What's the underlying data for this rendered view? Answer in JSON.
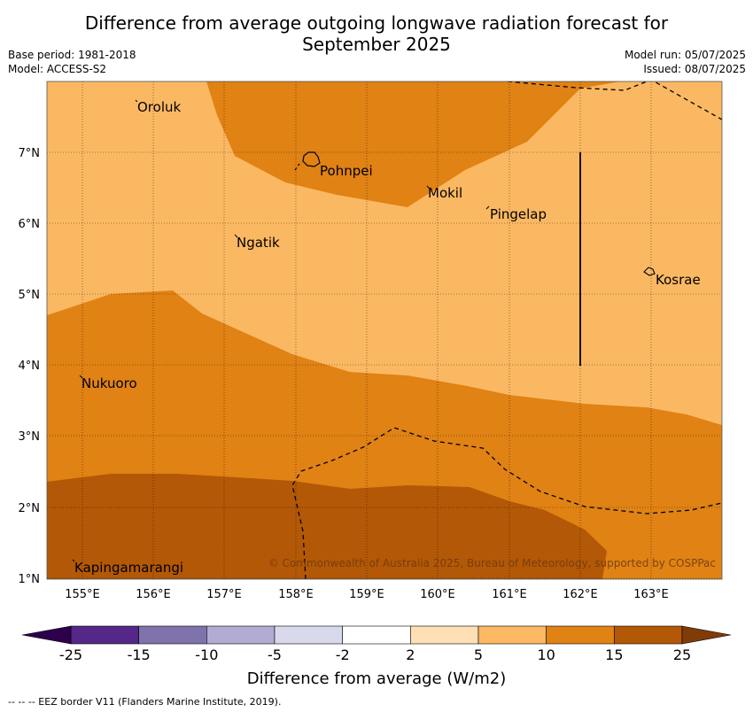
{
  "title": {
    "line1": "Difference from average outgoing longwave radiation forecast for",
    "line2": "September 2025"
  },
  "meta": {
    "base_period": "Base period: 1981-2018",
    "model": "Model: ACCESS-S2",
    "model_run": "Model run: 05/07/2025",
    "issued": "Issued: 08/07/2025"
  },
  "map": {
    "lat_labels": [
      "7°N",
      "6°N",
      "5°N",
      "4°N",
      "3°N",
      "2°N",
      "1°N"
    ],
    "lon_labels": [
      "155°E",
      "156°E",
      "157°E",
      "158°E",
      "159°E",
      "160°E",
      "161°E",
      "162°E",
      "163°E"
    ],
    "places": [
      {
        "name": "Oroluk"
      },
      {
        "name": "Pohnpei"
      },
      {
        "name": "Mokil"
      },
      {
        "name": "Pingelap"
      },
      {
        "name": "Ngatik"
      },
      {
        "name": "Kosrae"
      },
      {
        "name": "Nukuoro"
      },
      {
        "name": "Kapingamarangi"
      }
    ],
    "copyright": "© Commonwealth of Australia 2025, Bureau of Meteorology, supported by COSPPac",
    "colors": {
      "band_5_10": "#fbb862",
      "band_10_15": "#e08214",
      "band_15_25": "#b35806"
    }
  },
  "colorbar": {
    "labels": [
      "-25",
      "-15",
      "-10",
      "-5",
      "-2",
      "2",
      "5",
      "10",
      "15",
      "25"
    ],
    "colors": [
      "#542788",
      "#8073ac",
      "#b2abd2",
      "#d8daeb",
      "#ffffff",
      "#fee0b6",
      "#fdb863",
      "#e08214",
      "#b35806"
    ],
    "under_color": "#2d004b",
    "over_color": "#7f3b08",
    "label": "Difference from average (W/m2)"
  },
  "footer": "--  --  -- EEZ border V11 (Flanders Marine Institute, 2019)."
}
